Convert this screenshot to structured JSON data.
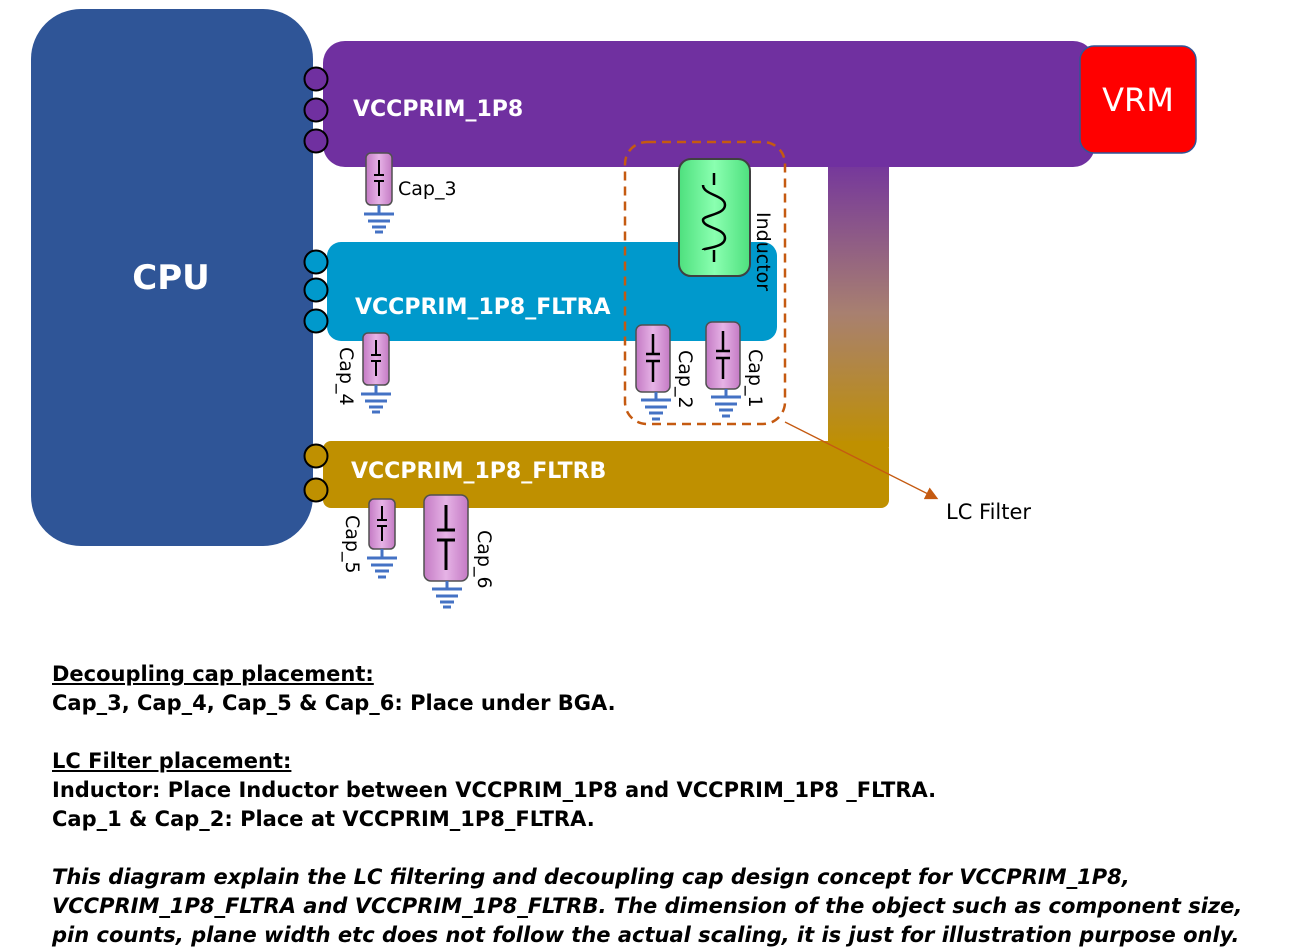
{
  "diagram": {
    "cpu_label": "CPU",
    "vrm_label": "VRM",
    "rails": {
      "main": "VCCPRIM_1P8",
      "fltra": "VCCPRIM_1P8_FLTRA",
      "fltrb": "VCCPRIM_1P8_FLTRB"
    },
    "inductor_label": "Inductor",
    "lc_filter_label": "LC Filter",
    "caps": {
      "cap_1": "Cap_1",
      "cap_2": "Cap_2",
      "cap_3": "Cap_3",
      "cap_4": "Cap_4",
      "cap_5": "Cap_5",
      "cap_6": "Cap_6"
    },
    "colors": {
      "cpu": "#2f5597",
      "main_rail": "#7030a0",
      "fltra_rail": "#0099cc",
      "fltrb_rail": "#bf9000",
      "vrm": "#ff0000",
      "inductor": "#66ff99",
      "capacitor": "#cc88cc",
      "ground": "#4472c4",
      "lc_outline": "#c55a11"
    }
  },
  "notes": {
    "decoupling_heading": "Decoupling cap placement:",
    "decoupling_text": "Cap_3, Cap_4, Cap_5 & Cap_6: Place under BGA.",
    "lc_heading": "LC Filter placement:",
    "lc_inductor_text": "Inductor: Place Inductor between VCCPRIM_1P8 and VCCPRIM_1P8 _FLTRA.",
    "lc_caps_text": "Cap_1 & Cap_2: Place at VCCPRIM_1P8_FLTRA.",
    "disclaimer": "This diagram explain the LC filtering and decoupling cap design concept for VCCPRIM_1P8, VCCPRIM_1P8_FLTRA and VCCPRIM_1P8_FLTRB. The dimension of the object such as component size, pin counts, plane width etc does not follow the actual scaling, it is just for illustration purpose only."
  }
}
